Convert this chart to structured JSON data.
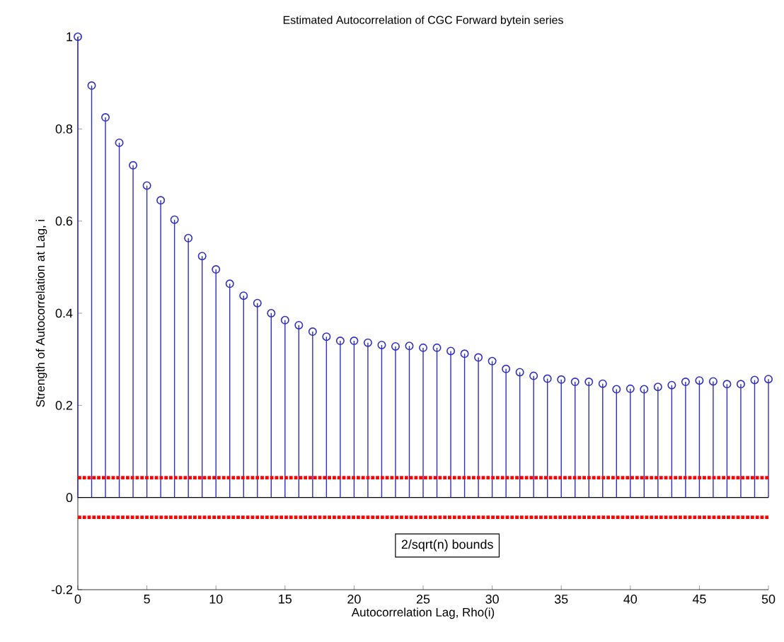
{
  "chart_data": {
    "type": "lollipop",
    "title": "Estimated Autocorrelation of CGC Forward bytein series",
    "xlabel": "Autocorrelation Lag, Rho(i)",
    "ylabel": "Strength of Autocorrelation at Lag, i",
    "x": [
      0,
      1,
      2,
      3,
      4,
      5,
      6,
      7,
      8,
      9,
      10,
      11,
      12,
      13,
      14,
      15,
      16,
      17,
      18,
      19,
      20,
      21,
      22,
      23,
      24,
      25,
      26,
      27,
      28,
      29,
      30,
      31,
      32,
      33,
      34,
      35,
      36,
      37,
      38,
      39,
      40,
      41,
      42,
      43,
      44,
      45,
      46,
      47,
      48,
      49,
      50
    ],
    "values": [
      1.0,
      0.894,
      0.825,
      0.77,
      0.721,
      0.677,
      0.645,
      0.603,
      0.563,
      0.524,
      0.495,
      0.464,
      0.438,
      0.422,
      0.4,
      0.385,
      0.374,
      0.36,
      0.349,
      0.34,
      0.34,
      0.336,
      0.331,
      0.328,
      0.329,
      0.325,
      0.325,
      0.318,
      0.312,
      0.304,
      0.296,
      0.279,
      0.272,
      0.264,
      0.258,
      0.256,
      0.251,
      0.251,
      0.247,
      0.235,
      0.236,
      0.235,
      0.24,
      0.244,
      0.251,
      0.254,
      0.252,
      0.246,
      0.246,
      0.255,
      0.257
    ],
    "color": "#3030c0",
    "marker": "circle",
    "xlim": [
      0,
      50
    ],
    "ylim": [
      -0.2,
      1
    ],
    "xticks": [
      0,
      5,
      10,
      15,
      20,
      25,
      30,
      35,
      40,
      45,
      50
    ],
    "yticks": [
      -0.2,
      0,
      0.2,
      0.4,
      0.6,
      0.8,
      1
    ],
    "ref_lines": [
      {
        "axis": "y",
        "value": 0.043,
        "color": "#ff0000",
        "line_style": "dotted"
      },
      {
        "axis": "y",
        "value": -0.043,
        "color": "#ff0000",
        "line_style": "dotted"
      }
    ],
    "annotations": [
      "2/sqrt(n) bounds"
    ]
  }
}
